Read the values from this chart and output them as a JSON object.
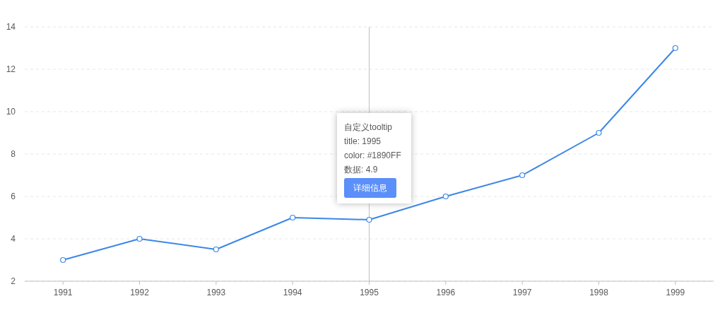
{
  "chart_data": {
    "type": "line",
    "x": [
      1991,
      1992,
      1993,
      1994,
      1995,
      1996,
      1997,
      1998,
      1999
    ],
    "xlim": [
      1990.5,
      1999.5
    ],
    "xticks": [
      1991,
      1992,
      1993,
      1994,
      1995,
      1996,
      1997,
      1998,
      1999
    ],
    "ylim": [
      2,
      14
    ],
    "yticks": [
      2,
      4,
      6,
      8,
      10,
      12,
      14
    ],
    "series": [
      {
        "color": "#3b87e8",
        "values": [
          3,
          4,
          3.5,
          5,
          4.9,
          6,
          7,
          9,
          13
        ]
      }
    ],
    "grid": "y",
    "marker": "circle",
    "line_style": "solid",
    "ref_lines": [
      {
        "axis": "x",
        "value": 1995,
        "color": "#bfbfbf"
      }
    ],
    "annotations": [
      "自定义tooltip",
      "title: 1995",
      "color: #1890FF",
      "数据: 4.9",
      "详细信息"
    ]
  }
}
